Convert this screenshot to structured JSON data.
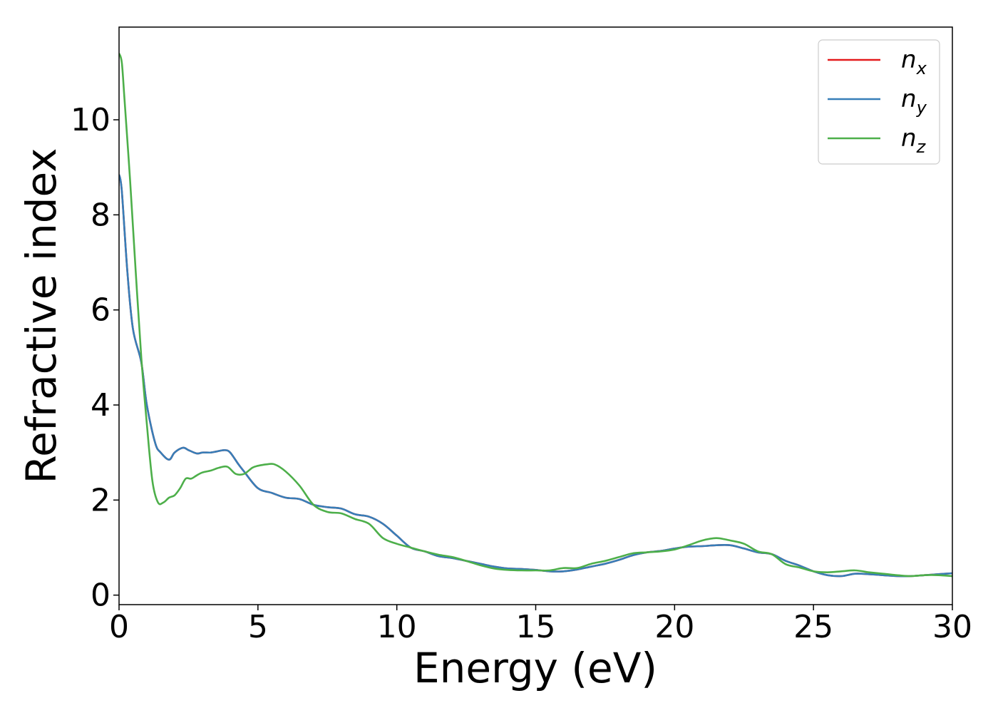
{
  "chart_data": {
    "type": "line",
    "xlabel": "Energy (eV)",
    "ylabel": "Refractive index",
    "xlim": [
      0,
      30
    ],
    "ylim": [
      -0.2,
      11.95
    ],
    "xticks": [
      0,
      5,
      10,
      15,
      20,
      25,
      30
    ],
    "yticks": [
      0,
      2,
      4,
      6,
      8,
      10
    ],
    "grid": false,
    "legend_position": "top-right",
    "series": [
      {
        "name": "n_x",
        "label_main": "n",
        "label_sub": "x",
        "color": "#e41a1c",
        "x": [
          0,
          0.1,
          0.3,
          0.5,
          0.8,
          1.0,
          1.3,
          1.5,
          1.8,
          2.0,
          2.3,
          2.5,
          2.8,
          3.0,
          3.3,
          3.5,
          3.8,
          4.0,
          4.3,
          4.5,
          5.0,
          5.5,
          6.0,
          6.5,
          7.0,
          7.5,
          8.0,
          8.5,
          9.0,
          9.5,
          10.0,
          10.5,
          11.0,
          11.5,
          12.0,
          12.5,
          13.0,
          13.5,
          14.0,
          14.5,
          15.0,
          15.5,
          16.0,
          16.5,
          17.0,
          17.5,
          18.0,
          18.5,
          19.0,
          19.5,
          20.0,
          20.5,
          21.0,
          21.5,
          22.0,
          22.5,
          23.0,
          23.5,
          24.0,
          24.5,
          25.0,
          25.5,
          26.0,
          26.5,
          27.0,
          27.5,
          28.0,
          28.5,
          29.0,
          29.5,
          30.0
        ],
        "values": [
          8.85,
          8.5,
          6.8,
          5.6,
          4.9,
          4.0,
          3.2,
          3.0,
          2.85,
          3.0,
          3.1,
          3.05,
          2.98,
          3.0,
          3.0,
          3.02,
          3.05,
          3.0,
          2.75,
          2.6,
          2.25,
          2.15,
          2.05,
          2.02,
          1.9,
          1.85,
          1.82,
          1.7,
          1.65,
          1.5,
          1.25,
          1.0,
          0.92,
          0.82,
          0.78,
          0.72,
          0.66,
          0.6,
          0.56,
          0.55,
          0.53,
          0.5,
          0.5,
          0.54,
          0.6,
          0.66,
          0.74,
          0.84,
          0.9,
          0.93,
          0.98,
          1.02,
          1.03,
          1.05,
          1.05,
          0.98,
          0.9,
          0.86,
          0.72,
          0.62,
          0.5,
          0.42,
          0.4,
          0.45,
          0.44,
          0.42,
          0.4,
          0.4,
          0.42,
          0.44,
          0.46
        ]
      },
      {
        "name": "n_y",
        "label_main": "n",
        "label_sub": "y",
        "color": "#377eb8",
        "x": [
          0,
          0.1,
          0.3,
          0.5,
          0.8,
          1.0,
          1.3,
          1.5,
          1.8,
          2.0,
          2.3,
          2.5,
          2.8,
          3.0,
          3.3,
          3.5,
          3.8,
          4.0,
          4.3,
          4.5,
          5.0,
          5.5,
          6.0,
          6.5,
          7.0,
          7.5,
          8.0,
          8.5,
          9.0,
          9.5,
          10.0,
          10.5,
          11.0,
          11.5,
          12.0,
          12.5,
          13.0,
          13.5,
          14.0,
          14.5,
          15.0,
          15.5,
          16.0,
          16.5,
          17.0,
          17.5,
          18.0,
          18.5,
          19.0,
          19.5,
          20.0,
          20.5,
          21.0,
          21.5,
          22.0,
          22.5,
          23.0,
          23.5,
          24.0,
          24.5,
          25.0,
          25.5,
          26.0,
          26.5,
          27.0,
          27.5,
          28.0,
          28.5,
          29.0,
          29.5,
          30.0
        ],
        "values": [
          8.85,
          8.5,
          6.8,
          5.6,
          4.9,
          4.0,
          3.2,
          3.0,
          2.85,
          3.0,
          3.1,
          3.05,
          2.98,
          3.0,
          3.0,
          3.02,
          3.05,
          3.0,
          2.75,
          2.6,
          2.25,
          2.15,
          2.05,
          2.02,
          1.9,
          1.85,
          1.82,
          1.7,
          1.65,
          1.5,
          1.25,
          1.0,
          0.92,
          0.82,
          0.78,
          0.72,
          0.66,
          0.6,
          0.56,
          0.55,
          0.53,
          0.5,
          0.5,
          0.54,
          0.6,
          0.66,
          0.74,
          0.84,
          0.9,
          0.93,
          0.98,
          1.02,
          1.03,
          1.05,
          1.05,
          0.98,
          0.9,
          0.86,
          0.72,
          0.62,
          0.5,
          0.42,
          0.4,
          0.45,
          0.44,
          0.42,
          0.4,
          0.4,
          0.42,
          0.44,
          0.46
        ]
      },
      {
        "name": "n_z",
        "label_main": "n",
        "label_sub": "z",
        "color": "#4daf4a",
        "x": [
          0,
          0.1,
          0.2,
          0.4,
          0.6,
          0.8,
          1.0,
          1.2,
          1.4,
          1.6,
          1.8,
          2.0,
          2.2,
          2.4,
          2.6,
          2.8,
          3.0,
          3.3,
          3.6,
          3.9,
          4.2,
          4.5,
          4.8,
          5.0,
          5.3,
          5.6,
          6.0,
          6.5,
          7.0,
          7.5,
          8.0,
          8.5,
          9.0,
          9.5,
          10.0,
          10.5,
          11.0,
          11.5,
          12.0,
          12.5,
          13.0,
          13.5,
          14.0,
          14.5,
          15.0,
          15.5,
          16.0,
          16.5,
          17.0,
          17.5,
          18.0,
          18.5,
          19.0,
          19.5,
          20.0,
          20.5,
          21.0,
          21.5,
          22.0,
          22.5,
          23.0,
          23.5,
          24.0,
          24.5,
          25.0,
          25.5,
          26.0,
          26.5,
          27.0,
          27.5,
          28.0,
          28.5,
          29.0,
          29.5,
          30.0
        ],
        "values": [
          11.4,
          11.2,
          10.4,
          8.7,
          6.8,
          5.0,
          3.6,
          2.4,
          1.95,
          1.95,
          2.05,
          2.1,
          2.25,
          2.45,
          2.45,
          2.52,
          2.58,
          2.62,
          2.68,
          2.7,
          2.55,
          2.55,
          2.68,
          2.72,
          2.75,
          2.75,
          2.6,
          2.3,
          1.9,
          1.75,
          1.72,
          1.6,
          1.5,
          1.2,
          1.08,
          1.0,
          0.92,
          0.85,
          0.8,
          0.72,
          0.63,
          0.56,
          0.53,
          0.52,
          0.52,
          0.52,
          0.57,
          0.57,
          0.66,
          0.72,
          0.8,
          0.88,
          0.9,
          0.92,
          0.96,
          1.05,
          1.15,
          1.2,
          1.15,
          1.08,
          0.92,
          0.86,
          0.65,
          0.58,
          0.5,
          0.48,
          0.5,
          0.52,
          0.48,
          0.45,
          0.42,
          0.4,
          0.42,
          0.42,
          0.4
        ]
      }
    ]
  }
}
